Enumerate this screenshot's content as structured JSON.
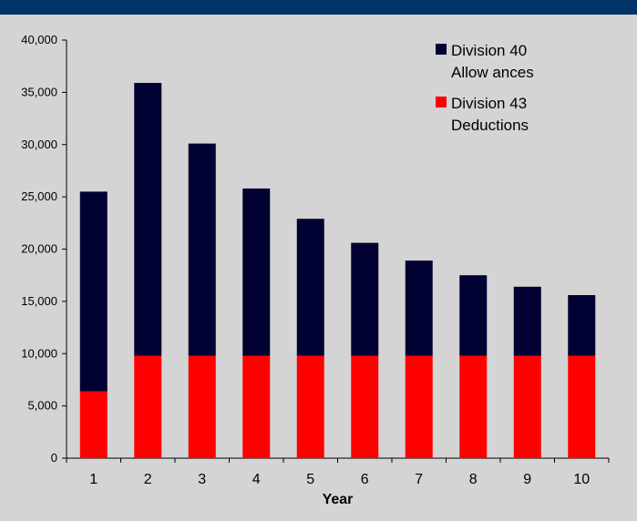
{
  "chart_data": {
    "type": "bar",
    "stacked": true,
    "categories": [
      "1",
      "2",
      "3",
      "4",
      "5",
      "6",
      "7",
      "8",
      "9",
      "10"
    ],
    "series": [
      {
        "name": "Division 43 Deductions",
        "legend_lines": [
          "Division 43",
          "Deductions"
        ],
        "color": "#ff0000",
        "values": [
          6400,
          9800,
          9800,
          9800,
          9800,
          9800,
          9800,
          9800,
          9800,
          9800
        ]
      },
      {
        "name": "Division 40 Allowances",
        "legend_lines": [
          "Division 40",
          "Allow ances"
        ],
        "color": "#000033",
        "values": [
          19100,
          26100,
          20300,
          16000,
          13100,
          10800,
          9100,
          7700,
          6600,
          5800
        ]
      }
    ],
    "xlabel": "Year",
    "ylabel": "",
    "ylim": [
      0,
      40000
    ],
    "yticks": [
      "0",
      "5,000",
      "10,000",
      "15,000",
      "20,000",
      "25,000",
      "30,000",
      "35,000",
      "40,000"
    ],
    "grid": false,
    "legend_position": "top-right"
  },
  "colors": {
    "background": "#d4d4d4",
    "top_band": "#003366"
  }
}
